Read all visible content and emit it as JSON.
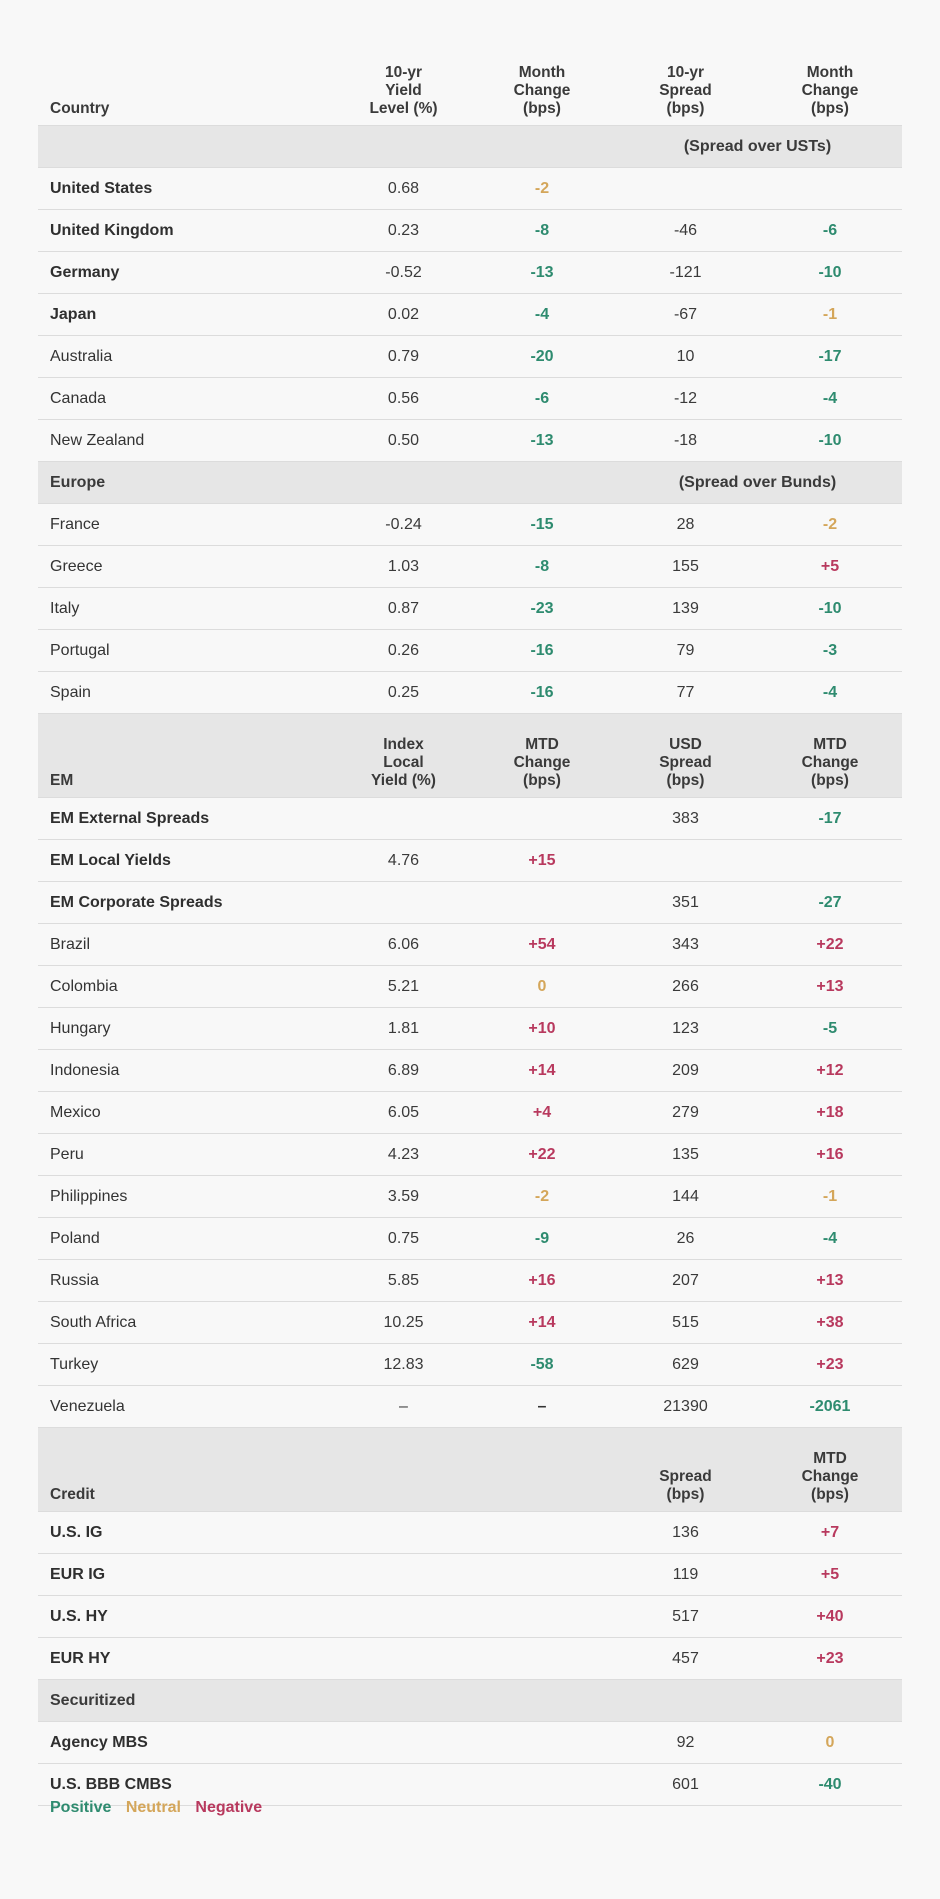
{
  "colors": {
    "positive": "#2e8b6f",
    "neutral": "#d4a65a",
    "negative": "#b8395e"
  },
  "headers": {
    "main": {
      "label": "Country",
      "c2": "10-yr\nYield\nLevel (%)",
      "c3": "Month\nChange\n(bps)",
      "c4": "10-yr\nSpread\n(bps)",
      "c5": "Month\nChange\n(bps)"
    },
    "em": {
      "label": "EM",
      "c2": "Index\nLocal\nYield (%)",
      "c3": "MTD\nChange\n(bps)",
      "c4": "USD\nSpread\n(bps)",
      "c5": "MTD\nChange\n(bps)"
    },
    "credit": {
      "label": "Credit",
      "c4": "Spread\n(bps)",
      "c5": "MTD\nChange\n(bps)"
    }
  },
  "sections": {
    "usts_note": "(Spread over USTs)",
    "europe": "Europe",
    "bunds_note": "(Spread over Bunds)",
    "securitized": "Securitized"
  },
  "developed": [
    {
      "name": "United States",
      "yield": "0.68",
      "ychg": "-2",
      "ychg_cls": "neu",
      "spread": "",
      "schg": "",
      "schg_cls": ""
    },
    {
      "name": "United Kingdom",
      "yield": "0.23",
      "ychg": "-8",
      "ychg_cls": "pos",
      "spread": "-46",
      "schg": "-6",
      "schg_cls": "pos"
    },
    {
      "name": "Germany",
      "yield": "-0.52",
      "ychg": "-13",
      "ychg_cls": "pos",
      "spread": "-121",
      "schg": "-10",
      "schg_cls": "pos"
    },
    {
      "name": "Japan",
      "yield": "0.02",
      "ychg": "-4",
      "ychg_cls": "pos",
      "spread": "-67",
      "schg": "-1",
      "schg_cls": "neu"
    },
    {
      "name": "Australia",
      "yield": "0.79",
      "ychg": "-20",
      "ychg_cls": "pos",
      "spread": "10",
      "schg": "-17",
      "schg_cls": "pos"
    },
    {
      "name": "Canada",
      "yield": "0.56",
      "ychg": "-6",
      "ychg_cls": "pos",
      "spread": "-12",
      "schg": "-4",
      "schg_cls": "pos"
    },
    {
      "name": "New Zealand",
      "yield": "0.50",
      "ychg": "-13",
      "ychg_cls": "pos",
      "spread": "-18",
      "schg": "-10",
      "schg_cls": "pos"
    }
  ],
  "europe": [
    {
      "name": "France",
      "yield": "-0.24",
      "ychg": "-15",
      "ychg_cls": "pos",
      "spread": "28",
      "schg": "-2",
      "schg_cls": "neu"
    },
    {
      "name": "Greece",
      "yield": "1.03",
      "ychg": "-8",
      "ychg_cls": "pos",
      "spread": "155",
      "schg": "+5",
      "schg_cls": "neg"
    },
    {
      "name": "Italy",
      "yield": "0.87",
      "ychg": "-23",
      "ychg_cls": "pos",
      "spread": "139",
      "schg": "-10",
      "schg_cls": "pos"
    },
    {
      "name": "Portugal",
      "yield": "0.26",
      "ychg": "-16",
      "ychg_cls": "pos",
      "spread": "79",
      "schg": "-3",
      "schg_cls": "pos"
    },
    {
      "name": "Spain",
      "yield": "0.25",
      "ychg": "-16",
      "ychg_cls": "pos",
      "spread": "77",
      "schg": "-4",
      "schg_cls": "pos"
    }
  ],
  "em": [
    {
      "name": "EM External Spreads",
      "yield": "",
      "ychg": "",
      "ychg_cls": "",
      "spread": "383",
      "schg": "-17",
      "schg_cls": "pos"
    },
    {
      "name": "EM Local Yields",
      "yield": "4.76",
      "ychg": "+15",
      "ychg_cls": "neg",
      "spread": "",
      "schg": "",
      "schg_cls": ""
    },
    {
      "name": "EM Corporate Spreads",
      "yield": "",
      "ychg": "",
      "ychg_cls": "",
      "spread": "351",
      "schg": "-27",
      "schg_cls": "pos"
    },
    {
      "name": "Brazil",
      "yield": "6.06",
      "ychg": "+54",
      "ychg_cls": "neg",
      "spread": "343",
      "schg": "+22",
      "schg_cls": "neg"
    },
    {
      "name": "Colombia",
      "yield": "5.21",
      "ychg": "0",
      "ychg_cls": "neu",
      "spread": "266",
      "schg": "+13",
      "schg_cls": "neg"
    },
    {
      "name": "Hungary",
      "yield": "1.81",
      "ychg": "+10",
      "ychg_cls": "neg",
      "spread": "123",
      "schg": "-5",
      "schg_cls": "pos"
    },
    {
      "name": "Indonesia",
      "yield": "6.89",
      "ychg": "+14",
      "ychg_cls": "neg",
      "spread": "209",
      "schg": "+12",
      "schg_cls": "neg"
    },
    {
      "name": "Mexico",
      "yield": "6.05",
      "ychg": "+4",
      "ychg_cls": "neg",
      "spread": "279",
      "schg": "+18",
      "schg_cls": "neg"
    },
    {
      "name": "Peru",
      "yield": "4.23",
      "ychg": "+22",
      "ychg_cls": "neg",
      "spread": "135",
      "schg": "+16",
      "schg_cls": "neg"
    },
    {
      "name": "Philippines",
      "yield": "3.59",
      "ychg": "-2",
      "ychg_cls": "neu",
      "spread": "144",
      "schg": "-1",
      "schg_cls": "neu"
    },
    {
      "name": "Poland",
      "yield": "0.75",
      "ychg": "-9",
      "ychg_cls": "pos",
      "spread": "26",
      "schg": "-4",
      "schg_cls": "pos"
    },
    {
      "name": "Russia",
      "yield": "5.85",
      "ychg": "+16",
      "ychg_cls": "neg",
      "spread": "207",
      "schg": "+13",
      "schg_cls": "neg"
    },
    {
      "name": "South Africa",
      "yield": "10.25",
      "ychg": "+14",
      "ychg_cls": "neg",
      "spread": "515",
      "schg": "+38",
      "schg_cls": "neg"
    },
    {
      "name": "Turkey",
      "yield": "12.83",
      "ychg": "-58",
      "ychg_cls": "pos",
      "spread": "629",
      "schg": "+23",
      "schg_cls": "neg"
    },
    {
      "name": "Venezuela",
      "yield": "–",
      "ychg": "–",
      "ychg_cls": "",
      "spread": "21390",
      "schg": "-2061",
      "schg_cls": "pos"
    }
  ],
  "credit": [
    {
      "name": "U.S. IG",
      "spread": "136",
      "schg": "+7",
      "schg_cls": "neg"
    },
    {
      "name": "EUR IG",
      "spread": "119",
      "schg": "+5",
      "schg_cls": "neg"
    },
    {
      "name": "U.S. HY",
      "spread": "517",
      "schg": "+40",
      "schg_cls": "neg"
    },
    {
      "name": "EUR HY",
      "spread": "457",
      "schg": "+23",
      "schg_cls": "neg"
    }
  ],
  "securitized": [
    {
      "name": "Agency MBS",
      "spread": "92",
      "schg": "0",
      "schg_cls": "neu"
    },
    {
      "name": "U.S. BBB CMBS",
      "spread": "601",
      "schg": "-40",
      "schg_cls": "pos"
    }
  ],
  "legend": {
    "positive": "Positive",
    "neutral": "Neutral",
    "negative": "Negative"
  }
}
